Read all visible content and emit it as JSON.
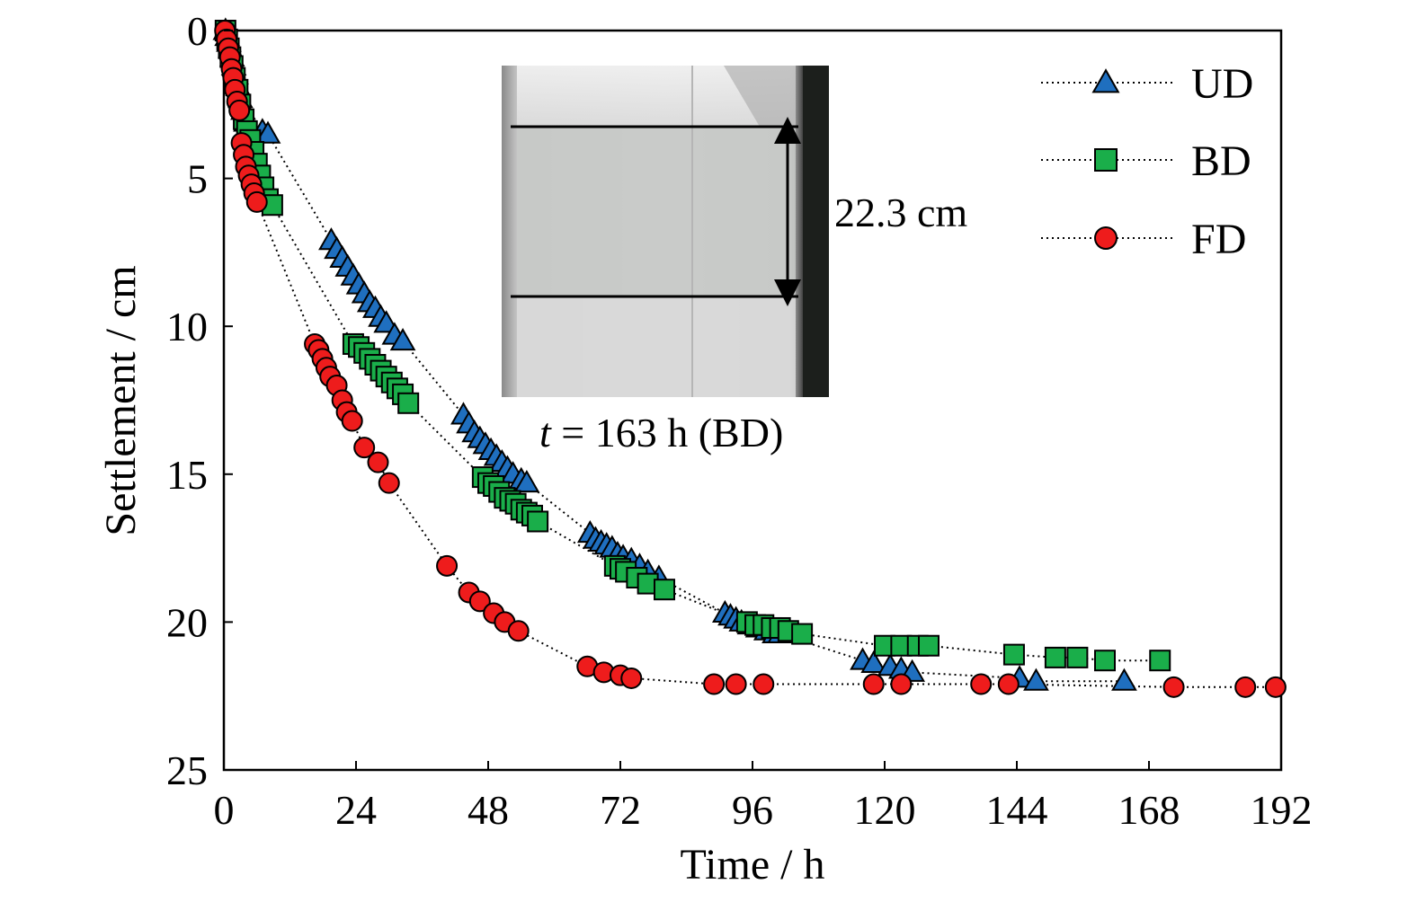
{
  "chart_data": {
    "type": "scatter",
    "xlabel": "Time / h",
    "ylabel": "Settlement / cm",
    "xlim": [
      0,
      192
    ],
    "ylim": [
      0,
      25
    ],
    "y_inverted": true,
    "grid": false,
    "legend_position": "top-right",
    "xticks": [
      "0",
      "24",
      "48",
      "72",
      "96",
      "120",
      "144",
      "168",
      "192"
    ],
    "yticks": [
      "0",
      "5",
      "10",
      "15",
      "20",
      "25"
    ],
    "series": [
      {
        "name": "UD",
        "marker": "triangle",
        "color": "#1f6fbf",
        "points": [
          [
            0.3,
            0.0
          ],
          [
            0.6,
            0.2
          ],
          [
            0.9,
            0.4
          ],
          [
            1.2,
            0.6
          ],
          [
            1.5,
            0.9
          ],
          [
            1.8,
            1.2
          ],
          [
            2.2,
            1.5
          ],
          [
            2.6,
            1.9
          ],
          [
            3.0,
            2.3
          ],
          [
            3.5,
            2.7
          ],
          [
            4.0,
            3.1
          ],
          [
            5.0,
            3.3
          ],
          [
            7.0,
            3.4
          ],
          [
            8.0,
            3.5
          ],
          [
            19.5,
            7.1
          ],
          [
            20.5,
            7.4
          ],
          [
            21.5,
            7.7
          ],
          [
            22.5,
            8.0
          ],
          [
            23.5,
            8.3
          ],
          [
            24.5,
            8.6
          ],
          [
            25.5,
            8.9
          ],
          [
            26.5,
            9.2
          ],
          [
            27.5,
            9.4
          ],
          [
            28.5,
            9.7
          ],
          [
            29.5,
            9.9
          ],
          [
            31.0,
            10.3
          ],
          [
            32.5,
            10.5
          ],
          [
            43.5,
            13.0
          ],
          [
            44.5,
            13.3
          ],
          [
            45.5,
            13.6
          ],
          [
            46.5,
            13.8
          ],
          [
            47.5,
            14.0
          ],
          [
            48.5,
            14.2
          ],
          [
            49.5,
            14.4
          ],
          [
            50.5,
            14.6
          ],
          [
            51.5,
            14.8
          ],
          [
            52.5,
            15.0
          ],
          [
            54.0,
            15.2
          ],
          [
            55.0,
            15.3
          ],
          [
            66.5,
            17.0
          ],
          [
            67.5,
            17.2
          ],
          [
            68.5,
            17.3
          ],
          [
            69.5,
            17.4
          ],
          [
            70.5,
            17.5
          ],
          [
            71.5,
            17.7
          ],
          [
            72.5,
            17.8
          ],
          [
            74.0,
            17.9
          ],
          [
            75.5,
            18.1
          ],
          [
            77.0,
            18.3
          ],
          [
            79.0,
            18.5
          ],
          [
            91.0,
            19.7
          ],
          [
            92.0,
            19.8
          ],
          [
            93.0,
            19.9
          ],
          [
            94.0,
            20.0
          ],
          [
            95.5,
            20.1
          ],
          [
            97.0,
            20.2
          ],
          [
            98.5,
            20.3
          ],
          [
            100.0,
            20.4
          ],
          [
            101.0,
            20.4
          ],
          [
            116.0,
            21.3
          ],
          [
            118.0,
            21.4
          ],
          [
            121.0,
            21.5
          ],
          [
            123.0,
            21.6
          ],
          [
            125.0,
            21.7
          ],
          [
            144.5,
            21.9
          ],
          [
            147.5,
            22.0
          ],
          [
            163.5,
            22.0
          ]
        ]
      },
      {
        "name": "BD",
        "marker": "square",
        "color": "#1aae4a",
        "points": [
          [
            0.3,
            0.0
          ],
          [
            0.6,
            0.3
          ],
          [
            0.9,
            0.6
          ],
          [
            1.2,
            0.9
          ],
          [
            1.6,
            1.2
          ],
          [
            2.0,
            1.6
          ],
          [
            2.5,
            2.0
          ],
          [
            3.0,
            2.5
          ],
          [
            3.6,
            3.0
          ],
          [
            4.2,
            3.4
          ],
          [
            4.8,
            3.7
          ],
          [
            5.4,
            4.1
          ],
          [
            6.0,
            4.5
          ],
          [
            6.6,
            4.9
          ],
          [
            7.2,
            5.3
          ],
          [
            8.0,
            5.7
          ],
          [
            8.8,
            5.9
          ],
          [
            23.5,
            10.6
          ],
          [
            24.5,
            10.7
          ],
          [
            25.5,
            10.9
          ],
          [
            26.5,
            11.1
          ],
          [
            27.5,
            11.3
          ],
          [
            28.5,
            11.5
          ],
          [
            29.5,
            11.7
          ],
          [
            30.5,
            11.9
          ],
          [
            31.5,
            12.1
          ],
          [
            32.5,
            12.3
          ],
          [
            33.5,
            12.6
          ],
          [
            47.0,
            15.1
          ],
          [
            48.0,
            15.3
          ],
          [
            49.0,
            15.4
          ],
          [
            50.0,
            15.6
          ],
          [
            51.0,
            15.8
          ],
          [
            52.0,
            15.9
          ],
          [
            53.0,
            16.0
          ],
          [
            54.0,
            16.2
          ],
          [
            55.0,
            16.3
          ],
          [
            56.0,
            16.4
          ],
          [
            57.0,
            16.6
          ],
          [
            71.0,
            18.1
          ],
          [
            72.0,
            18.2
          ],
          [
            73.0,
            18.3
          ],
          [
            75.0,
            18.5
          ],
          [
            77.0,
            18.7
          ],
          [
            80.0,
            18.9
          ],
          [
            95.0,
            20.0
          ],
          [
            96.5,
            20.1
          ],
          [
            98.0,
            20.1
          ],
          [
            99.5,
            20.2
          ],
          [
            101.0,
            20.2
          ],
          [
            102.5,
            20.3
          ],
          [
            105.0,
            20.4
          ],
          [
            120.0,
            20.8
          ],
          [
            123.0,
            20.8
          ],
          [
            126.0,
            20.8
          ],
          [
            128.0,
            20.8
          ],
          [
            143.5,
            21.1
          ],
          [
            151.0,
            21.2
          ],
          [
            155.0,
            21.2
          ],
          [
            160.0,
            21.3
          ],
          [
            170.0,
            21.3
          ]
        ]
      },
      {
        "name": "FD",
        "marker": "circle",
        "color": "#ee1c1c",
        "points": [
          [
            0.2,
            0.0
          ],
          [
            0.5,
            0.3
          ],
          [
            0.8,
            0.6
          ],
          [
            1.1,
            0.9
          ],
          [
            1.4,
            1.3
          ],
          [
            1.7,
            1.6
          ],
          [
            2.0,
            2.0
          ],
          [
            2.4,
            2.4
          ],
          [
            2.8,
            2.7
          ],
          [
            3.2,
            3.8
          ],
          [
            3.6,
            4.2
          ],
          [
            4.0,
            4.6
          ],
          [
            4.5,
            4.9
          ],
          [
            5.0,
            5.2
          ],
          [
            5.5,
            5.5
          ],
          [
            6.0,
            5.8
          ],
          [
            16.5,
            10.6
          ],
          [
            17.2,
            10.8
          ],
          [
            17.9,
            11.1
          ],
          [
            18.6,
            11.4
          ],
          [
            19.3,
            11.7
          ],
          [
            20.5,
            12.0
          ],
          [
            21.5,
            12.5
          ],
          [
            22.3,
            12.9
          ],
          [
            23.3,
            13.2
          ],
          [
            25.5,
            14.1
          ],
          [
            28.0,
            14.6
          ],
          [
            30.0,
            15.3
          ],
          [
            40.5,
            18.1
          ],
          [
            44.5,
            19.0
          ],
          [
            46.5,
            19.3
          ],
          [
            49.0,
            19.7
          ],
          [
            51.0,
            20.0
          ],
          [
            53.5,
            20.3
          ],
          [
            66.0,
            21.5
          ],
          [
            69.0,
            21.7
          ],
          [
            72.0,
            21.8
          ],
          [
            74.0,
            21.9
          ],
          [
            89.0,
            22.1
          ],
          [
            93.0,
            22.1
          ],
          [
            98.0,
            22.1
          ],
          [
            118.0,
            22.1
          ],
          [
            123.0,
            22.1
          ],
          [
            137.5,
            22.1
          ],
          [
            142.5,
            22.1
          ],
          [
            172.5,
            22.2
          ],
          [
            185.5,
            22.2
          ],
          [
            191.0,
            22.2
          ]
        ]
      }
    ],
    "inset": {
      "caption_italic": "t",
      "caption_rest": " = 163 h (BD)",
      "dimension_label": "22.3 cm"
    }
  }
}
